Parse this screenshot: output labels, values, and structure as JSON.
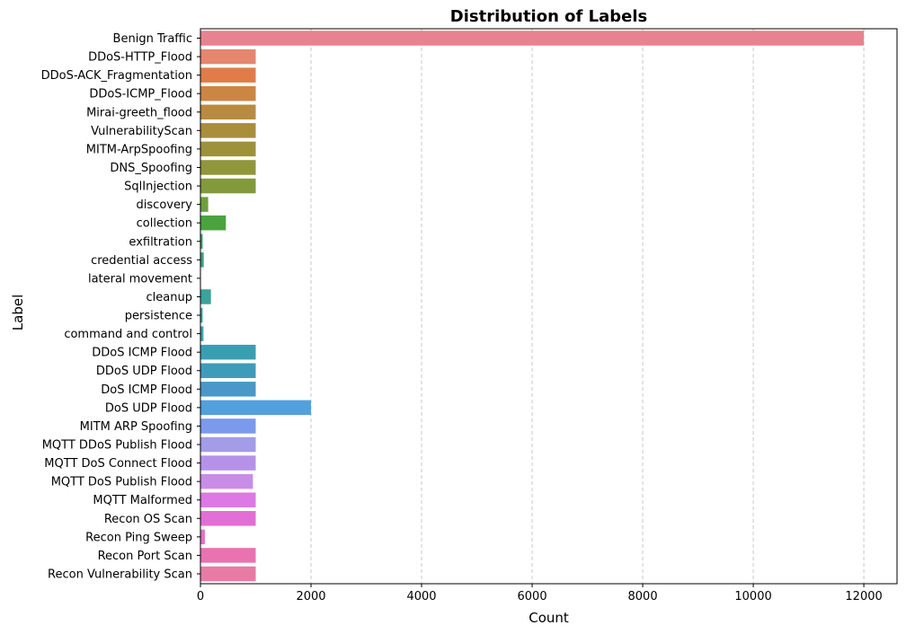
{
  "chart_data": {
    "type": "bar",
    "orientation": "horizontal",
    "title": "Distribution of Labels",
    "xlabel": "Count",
    "ylabel": "Label",
    "xlim": [
      0,
      12600
    ],
    "xticks": [
      0,
      2000,
      4000,
      6000,
      8000,
      10000,
      12000
    ],
    "grid": "x-dashed",
    "categories": [
      "Benign Traffic",
      "DDoS-HTTP_Flood",
      "DDoS-ACK_Fragmentation",
      "DDoS-ICMP_Flood",
      "Mirai-greeth_flood",
      "VulnerabilityScan",
      "MITM-ArpSpoofing",
      "DNS_Spoofing",
      "SqlInjection",
      "discovery",
      "collection",
      "exfiltration",
      "credential access",
      "lateral movement",
      "cleanup",
      "persistence",
      "command and control",
      "DDoS ICMP Flood",
      "DDoS UDP Flood",
      "DoS ICMP Flood",
      "DoS UDP Flood",
      "MITM ARP Spoofing",
      "MQTT DDoS Publish Flood",
      "MQTT DoS Connect Flood",
      "MQTT DoS Publish Flood",
      "MQTT Malformed",
      "Recon OS Scan",
      "Recon Ping Sweep",
      "Recon Port Scan",
      "Recon Vulnerability Scan"
    ],
    "values": [
      12000,
      1000,
      1000,
      1000,
      1000,
      1000,
      1000,
      1000,
      1000,
      140,
      460,
      40,
      60,
      0,
      190,
      40,
      55,
      1000,
      1000,
      1000,
      2000,
      1000,
      1000,
      1000,
      950,
      1000,
      1000,
      80,
      1000,
      1000
    ],
    "colors": [
      "#e8828f",
      "#e7856e",
      "#e17c48",
      "#cc8644",
      "#b88b3f",
      "#a98f3c",
      "#9e913b",
      "#8f963b",
      "#829a3c",
      "#6ca03b",
      "#4aa33f",
      "#3ba36b",
      "#3aa282",
      "#3aa091",
      "#3aa39b",
      "#3ba3a5",
      "#3ba4ad",
      "#3a9eb3",
      "#3e9cbb",
      "#4a98c8",
      "#52a0dc",
      "#7c9aeb",
      "#a29ce9",
      "#b592e8",
      "#c88ee6",
      "#de78e4",
      "#e36ed6",
      "#e670c2",
      "#e873b0",
      "#e77ba4"
    ]
  }
}
